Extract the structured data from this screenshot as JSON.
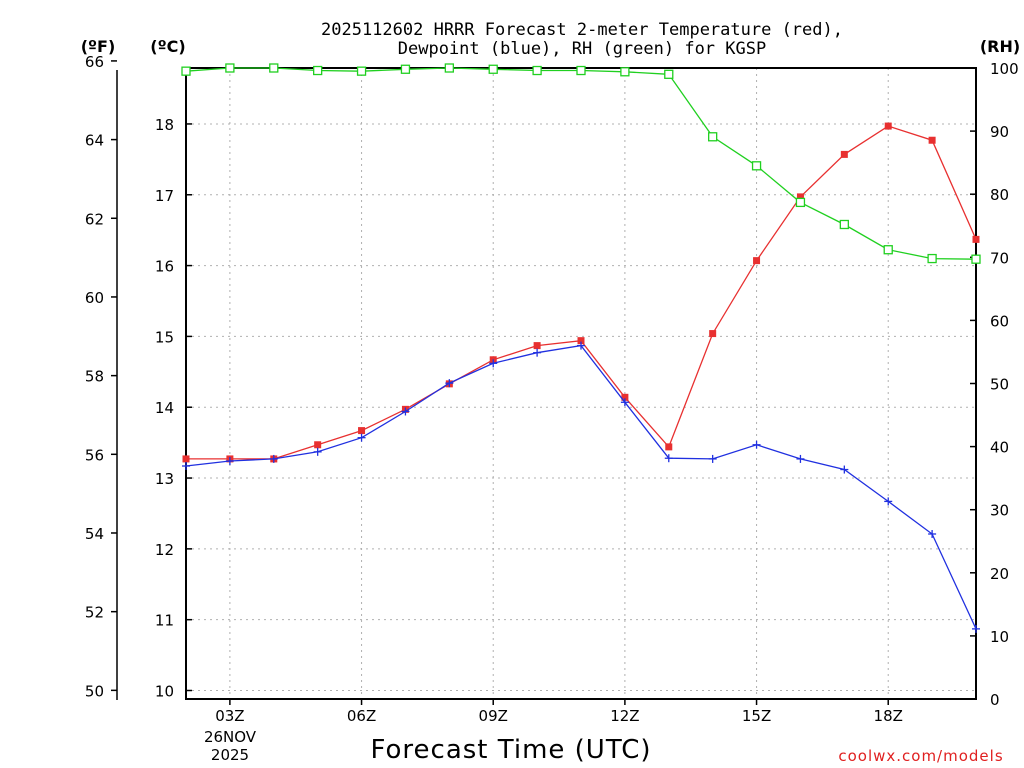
{
  "chart_data": {
    "type": "line",
    "title_lines": [
      "2025112602 HRRR Forecast 2-meter Temperature (red),",
      "Dewpoint (blue), RH (green) for KGSP"
    ],
    "xlabel": "Forecast Time (UTC)",
    "credit": "coolwx.com/models",
    "date_labels": [
      "26NOV",
      "2025"
    ],
    "units": {
      "left_f": "(ºF)",
      "left_c": "(ºC)",
      "right": "(RH)"
    },
    "x_ticks": [
      {
        "hour": 3,
        "label": "03Z"
      },
      {
        "hour": 6,
        "label": "06Z"
      },
      {
        "hour": 9,
        "label": "09Z"
      },
      {
        "hour": 12,
        "label": "12Z"
      },
      {
        "hour": 15,
        "label": "15Z"
      },
      {
        "hour": 18,
        "label": "18Z"
      }
    ],
    "xlim": [
      2,
      20
    ],
    "ylim_c": [
      9.88,
      18.79
    ],
    "ylim_f": [
      49.78,
      65.82
    ],
    "ylim_rh": [
      0,
      100
    ],
    "y_ticks_c": [
      10,
      11,
      12,
      13,
      14,
      15,
      16,
      17,
      18
    ],
    "y_ticks_f": [
      50,
      52,
      54,
      56,
      58,
      60,
      62,
      64,
      66
    ],
    "y_ticks_rh": [
      0,
      10,
      20,
      30,
      40,
      50,
      60,
      70,
      80,
      90,
      100
    ],
    "hours": [
      2,
      3,
      4,
      5,
      6,
      7,
      8,
      9,
      10,
      11,
      12,
      13,
      14,
      15,
      16,
      17,
      18,
      19,
      20
    ],
    "series": [
      {
        "name": "Temperature",
        "unit": "C",
        "color": "#e83030",
        "marker": "filled-square",
        "values": [
          13.27,
          13.27,
          13.27,
          13.47,
          13.67,
          13.97,
          14.33,
          14.67,
          14.87,
          14.94,
          14.14,
          13.44,
          15.04,
          16.07,
          16.97,
          17.57,
          17.97,
          17.77,
          16.37
        ]
      },
      {
        "name": "Dewpoint",
        "unit": "C",
        "color": "#2030e0",
        "marker": "plus",
        "values": [
          13.17,
          13.24,
          13.27,
          13.37,
          13.57,
          13.94,
          14.34,
          14.62,
          14.77,
          14.87,
          14.07,
          13.28,
          13.27,
          13.47,
          13.27,
          13.12,
          12.67,
          12.21,
          10.87
        ]
      },
      {
        "name": "RH",
        "unit": "%",
        "color": "#20d020",
        "marker": "open-square",
        "values": [
          99.5,
          100,
          100,
          99.6,
          99.5,
          99.8,
          100,
          99.8,
          99.6,
          99.6,
          99.4,
          99,
          89.1,
          84.5,
          78.7,
          75.2,
          71.2,
          69.8,
          69.7
        ]
      }
    ],
    "grid": true
  }
}
